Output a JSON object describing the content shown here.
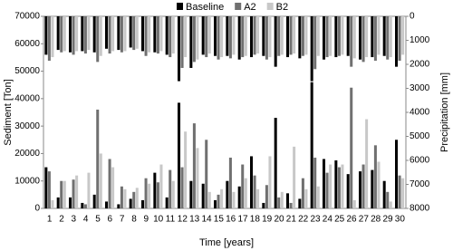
{
  "chart_data": {
    "type": "dual-bar",
    "x_label": "Time [years]",
    "y_label": "Sediment [Ton]",
    "y2_label": "Precipitation [mm]",
    "categories": [
      "1",
      "2",
      "3",
      "4",
      "5",
      "6",
      "7",
      "8",
      "9",
      "10",
      "11",
      "12",
      "13",
      "14",
      "15",
      "16",
      "17",
      "18",
      "19",
      "20",
      "21",
      "22",
      "23",
      "24",
      "25",
      "26",
      "27",
      "28",
      "29",
      "30"
    ],
    "ylim": [
      0,
      70000
    ],
    "yticks": [
      0,
      10000,
      20000,
      30000,
      40000,
      50000,
      60000,
      70000
    ],
    "y2lim": [
      0,
      8000
    ],
    "y2ticks": [
      0,
      1000,
      2000,
      3000,
      4000,
      5000,
      6000,
      7000,
      8000
    ],
    "y2_reversed": true,
    "legend": "top",
    "series": [
      {
        "name": "Baseline",
        "color": "#000000",
        "values": [
          15000,
          4000,
          4000,
          2000,
          5000,
          2500,
          1500,
          3500,
          3000,
          13000,
          4000,
          38500,
          10000,
          9000,
          3000,
          10000,
          8000,
          19000,
          2000,
          33000,
          5500,
          3500,
          46000,
          18000,
          17500,
          12500,
          13500,
          14000,
          10000,
          25000
        ],
        "y2_values": [
          1600,
          1400,
          1500,
          1450,
          1500,
          1350,
          1400,
          1300,
          1450,
          1500,
          1600,
          2700,
          2150,
          1600,
          1650,
          1650,
          1800,
          1700,
          1650,
          2100,
          1700,
          1750,
          2700,
          1800,
          1700,
          1650,
          1800,
          1700,
          1650,
          2100
        ]
      },
      {
        "name": "A2",
        "color": "#707070",
        "values": [
          13500,
          10000,
          10500,
          1500,
          36000,
          18000,
          8000,
          6000,
          11000,
          9500,
          14000,
          15000,
          31000,
          25000,
          5000,
          18500,
          16000,
          12000,
          8500,
          4000,
          2000,
          11000,
          18500,
          13000,
          15000,
          44000,
          16000,
          23000,
          6000,
          12000
        ],
        "y2_values": [
          1850,
          1500,
          1600,
          1550,
          1900,
          1550,
          1500,
          1400,
          1650,
          1550,
          1700,
          2150,
          1900,
          1700,
          1800,
          1750,
          1700,
          1600,
          1800,
          1650,
          1600,
          1650,
          2200,
          1700,
          1650,
          2100,
          1900,
          1850,
          1800,
          1850
        ]
      },
      {
        "name": "B2",
        "color": "#c8c8c8",
        "values": [
          3000,
          10000,
          12000,
          13000,
          20000,
          15000,
          7000,
          7500,
          9000,
          16000,
          10000,
          28000,
          22000,
          6000,
          7000,
          6000,
          11000,
          7000,
          19000,
          6000,
          22500,
          7000,
          8000,
          16000,
          16000,
          3000,
          32500,
          17000,
          2500,
          11000
        ],
        "y2_values": [
          1700,
          1450,
          1450,
          1400,
          1650,
          1450,
          1450,
          1350,
          1500,
          1450,
          1550,
          1700,
          1800,
          1550,
          1700,
          1600,
          1650,
          1550,
          1700,
          1600,
          1550,
          1600,
          1650,
          1650,
          1600,
          1750,
          1700,
          1600,
          1700,
          1600
        ]
      }
    ]
  }
}
